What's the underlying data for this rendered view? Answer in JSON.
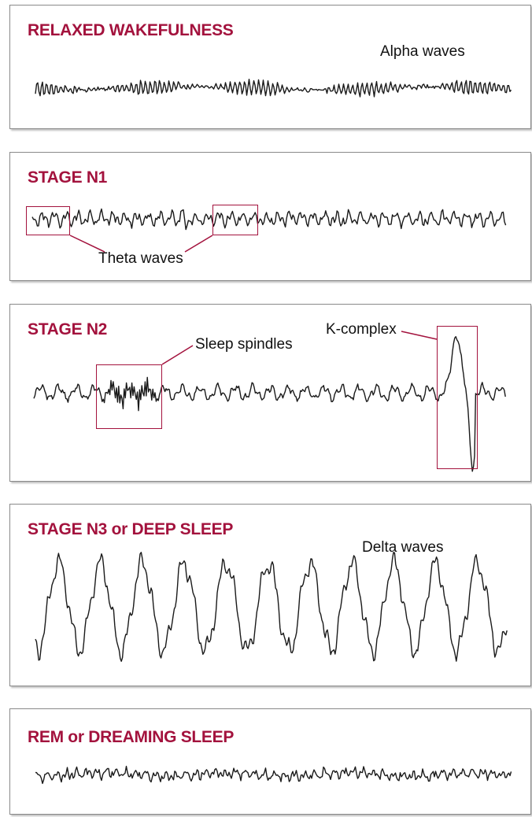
{
  "colors": {
    "title": "#a3123d",
    "annotation": "#a3123d",
    "trace": "#1a1a1a"
  },
  "panels": [
    {
      "title": "RELAXED WAKEFULNESS",
      "label": "Alpha waves"
    },
    {
      "title": "STAGE N1",
      "label": "Theta waves"
    },
    {
      "title": "STAGE N2",
      "label_spindles": "Sleep spindles",
      "label_kcomplex": "K-complex"
    },
    {
      "title": "STAGE N3 or DEEP SLEEP",
      "label": "Delta waves"
    },
    {
      "title": "REM or DREAMING SLEEP"
    }
  ]
}
